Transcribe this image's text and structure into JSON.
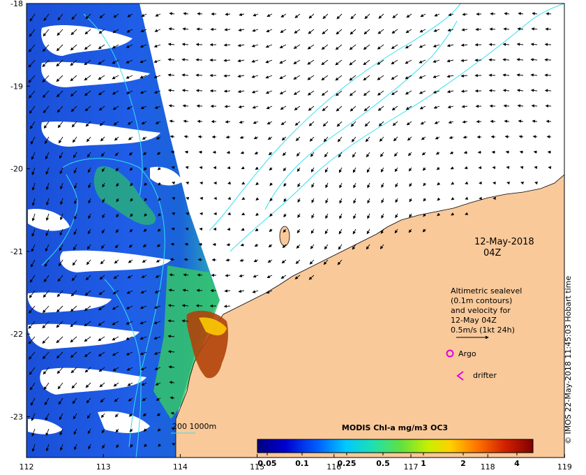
{
  "map": {
    "date": "12-May-2018",
    "time": "04Z",
    "x_ticks": [
      "112",
      "113",
      "114",
      "115",
      "116",
      "117",
      "118",
      "119"
    ],
    "y_ticks": [
      "-18",
      "-19",
      "-20",
      "-21",
      "-22",
      "-23"
    ],
    "land_color": "#f9c99a",
    "contour_color": "#33e0f0"
  },
  "legend": {
    "line1": "Altimetric sealevel",
    "line2": "(0.1m contours)",
    "line3": "and velocity for",
    "line4": "12-May 04Z",
    "line5": "0.5m/s (1kt 24h)",
    "argo_label": "Argo",
    "drifter_label": "drifter",
    "argo_color": "#e000e0"
  },
  "colorbar": {
    "title": "MODIS Chl-a mg/m3 OC3",
    "ticks": [
      "0.05",
      "0.1",
      "0.25",
      "0.5",
      "1",
      "2",
      "4"
    ]
  },
  "bathy": {
    "label": "200  1000m"
  },
  "credit": "© IMOS 22-May-2018 11:45:03 Hobart time"
}
